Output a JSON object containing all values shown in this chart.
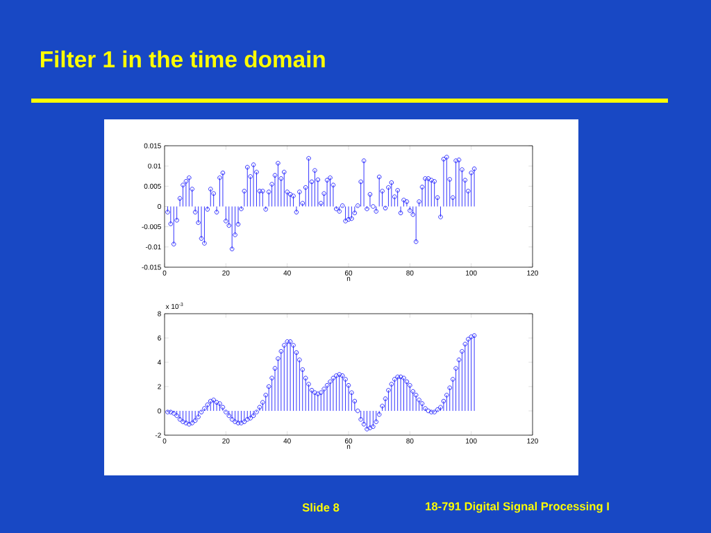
{
  "chart_data": [
    {
      "type": "lollipop",
      "title": "Filter 1 in the time domain",
      "xlabel": "n",
      "marker": "circle",
      "color": "#0000ff",
      "annotations": [
        "Slide 8",
        "18-791 Digital Signal Processing I"
      ],
      "xlim": [
        0,
        120
      ],
      "xticks": [
        0,
        20,
        40,
        60,
        80,
        100,
        120
      ],
      "ylim": [
        -0.015,
        0.015
      ],
      "yticks": [
        -0.015,
        -0.01,
        -0.005,
        0,
        0.005,
        0.01,
        0.015
      ],
      "x": [
        1,
        2,
        3,
        4,
        5,
        6,
        7,
        8,
        9,
        10,
        11,
        12,
        13,
        14,
        15,
        16,
        17,
        18,
        19,
        20,
        21,
        22,
        23,
        24,
        25,
        26,
        27,
        28,
        29,
        30,
        31,
        32,
        33,
        34,
        35,
        36,
        37,
        38,
        39,
        40,
        41,
        42,
        43,
        44,
        45,
        46,
        47,
        48,
        49,
        50,
        51,
        52,
        53,
        54,
        55,
        56,
        57,
        58,
        59,
        60,
        61,
        62,
        63,
        64,
        65,
        66,
        67,
        68,
        69,
        70,
        71,
        72,
        73,
        74,
        75,
        76,
        77,
        78,
        79,
        80,
        81,
        82,
        83,
        84,
        85,
        86,
        87,
        88,
        89,
        90,
        91,
        92,
        93,
        94,
        95,
        96,
        97,
        98,
        99,
        100,
        101
      ],
      "values": [
        -0.0014,
        -0.0043,
        -0.0093,
        -0.0034,
        0.002,
        0.0053,
        0.0062,
        0.0071,
        0.0043,
        -0.0014,
        -0.004,
        -0.0079,
        -0.0091,
        -0.0007,
        0.0043,
        0.0032,
        -0.0014,
        0.0071,
        0.0083,
        -0.0036,
        -0.0047,
        -0.0105,
        -0.007,
        -0.0044,
        -0.0006,
        0.0038,
        0.0097,
        0.0074,
        0.0103,
        0.0085,
        0.0038,
        0.0038,
        -0.0007,
        0.0036,
        0.0055,
        0.0077,
        0.0107,
        0.0069,
        0.0085,
        0.0036,
        0.003,
        0.0026,
        -0.0014,
        0.0036,
        0.0008,
        0.0047,
        0.0119,
        0.0061,
        0.0089,
        0.0066,
        0.0008,
        0.0032,
        0.0065,
        0.0071,
        0.0053,
        -0.0006,
        -0.0012,
        0.0002,
        -0.0036,
        -0.0032,
        -0.003,
        -0.0016,
        0.0002,
        0.0061,
        0.0113,
        -0.0006,
        0.003,
        0.0,
        -0.0012,
        0.0073,
        0.0038,
        -0.0004,
        0.0047,
        0.0059,
        0.0024,
        0.004,
        -0.0016,
        0.0016,
        0.0012,
        -0.001,
        -0.002,
        -0.0087,
        0.0012,
        0.0048,
        0.0069,
        0.0069,
        0.0065,
        0.0062,
        0.0022,
        -0.0026,
        0.0117,
        0.0122,
        0.0067,
        0.0022,
        0.0113,
        0.0115,
        0.0091,
        0.0065,
        0.0038,
        0.0083,
        0.0093
      ]
    },
    {
      "type": "lollipop",
      "xlabel": "n",
      "marker": "circle",
      "color": "#0000ff",
      "annotations": [
        "x 10$^{-3}$"
      ],
      "xlim": [
        0,
        120
      ],
      "xticks": [
        0,
        20,
        40,
        60,
        80,
        100,
        120
      ],
      "ylim": [
        -2,
        8
      ],
      "yticks": [
        -2,
        0,
        2,
        4,
        6,
        8
      ],
      "x": [
        1,
        2,
        3,
        4,
        5,
        6,
        7,
        8,
        9,
        10,
        11,
        12,
        13,
        14,
        15,
        16,
        17,
        18,
        19,
        20,
        21,
        22,
        23,
        24,
        25,
        26,
        27,
        28,
        29,
        30,
        31,
        32,
        33,
        34,
        35,
        36,
        37,
        38,
        39,
        40,
        41,
        42,
        43,
        44,
        45,
        46,
        47,
        48,
        49,
        50,
        51,
        52,
        53,
        54,
        55,
        56,
        57,
        58,
        59,
        60,
        61,
        62,
        63,
        64,
        65,
        66,
        67,
        68,
        69,
        70,
        71,
        72,
        73,
        74,
        75,
        76,
        77,
        78,
        79,
        80,
        81,
        82,
        83,
        84,
        85,
        86,
        87,
        88,
        89,
        90,
        91,
        92,
        93,
        94,
        95,
        96,
        97,
        98,
        99,
        100,
        101
      ],
      "values": [
        -0.1,
        -0.1,
        -0.2,
        -0.4,
        -0.7,
        -0.9,
        -1.0,
        -1.1,
        -1.0,
        -0.8,
        -0.5,
        -0.1,
        0.2,
        0.5,
        0.8,
        0.9,
        0.7,
        0.6,
        0.3,
        -0.1,
        -0.4,
        -0.7,
        -0.9,
        -1.0,
        -1.0,
        -0.9,
        -0.7,
        -0.6,
        -0.4,
        -0.1,
        0.3,
        0.7,
        1.3,
        2.0,
        2.7,
        3.5,
        4.3,
        4.9,
        5.4,
        5.7,
        5.7,
        5.4,
        4.8,
        4.2,
        3.4,
        2.7,
        2.2,
        1.7,
        1.5,
        1.4,
        1.5,
        1.8,
        2.1,
        2.4,
        2.7,
        2.9,
        3.0,
        2.9,
        2.6,
        2.1,
        1.5,
        0.8,
        0.0,
        -0.7,
        -1.1,
        -1.5,
        -1.4,
        -1.3,
        -0.9,
        -0.3,
        0.4,
        1.0,
        1.7,
        2.2,
        2.6,
        2.8,
        2.8,
        2.7,
        2.4,
        2.1,
        1.6,
        1.3,
        0.9,
        0.6,
        0.2,
        0.0,
        -0.1,
        -0.1,
        0.1,
        0.3,
        0.8,
        1.3,
        1.9,
        2.6,
        3.5,
        4.2,
        4.9,
        5.5,
        5.9,
        6.1,
        6.2
      ]
    }
  ]
}
